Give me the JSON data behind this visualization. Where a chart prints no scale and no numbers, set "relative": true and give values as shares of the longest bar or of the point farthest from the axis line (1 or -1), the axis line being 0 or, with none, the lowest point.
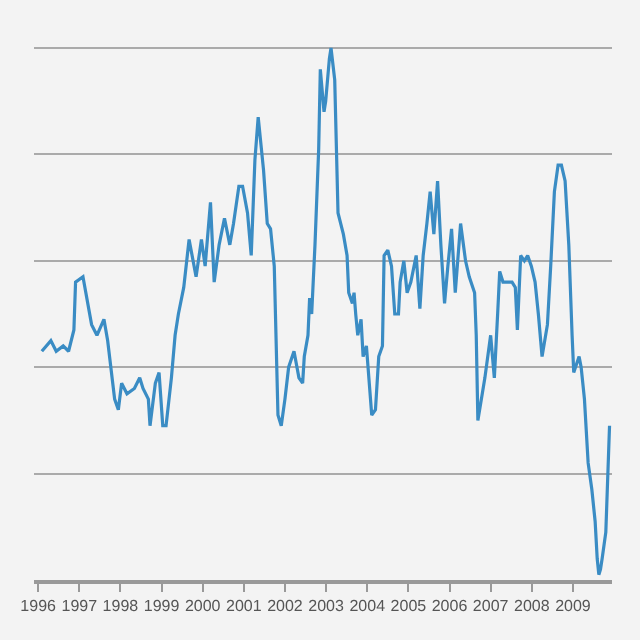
{
  "chart_data": {
    "type": "line",
    "relative": true,
    "grid": "y",
    "marker": "none",
    "line_style": "solid",
    "xlim": [
      1995.9,
      2009.95
    ],
    "xticks": [
      1996,
      1997,
      1998,
      1999,
      2000,
      2001,
      2002,
      2003,
      2004,
      2005,
      2006,
      2007,
      2008,
      2009
    ],
    "series": [
      {
        "color": "#3a8cc4",
        "x": [
          1996.09,
          1996.31,
          1996.44,
          1996.61,
          1996.74,
          1996.87,
          1996.91,
          1997.09,
          1997.3,
          1997.43,
          1997.6,
          1997.69,
          1997.86,
          1997.95,
          1998.03,
          1998.16,
          1998.34,
          1998.47,
          1998.55,
          1998.68,
          1998.72,
          1998.85,
          1998.94,
          1999.03,
          1999.11,
          1999.24,
          1999.33,
          1999.41,
          1999.54,
          1999.67,
          1999.84,
          1999.97,
          2000.06,
          2000.19,
          2000.28,
          2000.4,
          2000.53,
          2000.66,
          2000.75,
          2000.88,
          2000.97,
          2001.09,
          2001.18,
          2001.27,
          2001.35,
          2001.48,
          2001.57,
          2001.65,
          2001.74,
          2001.83,
          2001.91,
          2002.0,
          2002.09,
          2002.22,
          2002.34,
          2002.43,
          2002.47,
          2002.56,
          2002.6,
          2002.65,
          2002.73,
          2002.82,
          2002.86,
          2002.95,
          2002.99,
          2003.08,
          2003.12,
          2003.21,
          2003.29,
          2003.42,
          2003.51,
          2003.55,
          2003.64,
          2003.68,
          2003.72,
          2003.77,
          2003.85,
          2003.9,
          2003.98,
          2004.11,
          2004.2,
          2004.28,
          2004.37,
          2004.41,
          2004.5,
          2004.59,
          2004.67,
          2004.76,
          2004.8,
          2004.89,
          2004.97,
          2005.06,
          2005.19,
          2005.28,
          2005.36,
          2005.45,
          2005.53,
          2005.62,
          2005.71,
          2005.79,
          2005.88,
          2005.96,
          2006.05,
          2006.14,
          2006.27,
          2006.39,
          2006.48,
          2006.61,
          2006.65,
          2006.69,
          2006.86,
          2007.0,
          2007.09,
          2007.17,
          2007.22,
          2007.3,
          2007.39,
          2007.52,
          2007.6,
          2007.65,
          2007.73,
          2007.82,
          2007.9,
          2007.99,
          2008.08,
          2008.16,
          2008.25,
          2008.38,
          2008.46,
          2008.55,
          2008.64,
          2008.72,
          2008.81,
          2008.9,
          2008.98,
          2009.02,
          2009.15,
          2009.2,
          2009.28,
          2009.37,
          2009.46,
          2009.54,
          2009.59,
          2009.63,
          2009.67,
          2009.71,
          2009.8,
          2009.89
        ],
        "values": [
          0.43,
          0.45,
          0.43,
          0.44,
          0.43,
          0.47,
          0.56,
          0.57,
          0.48,
          0.46,
          0.49,
          0.45,
          0.34,
          0.32,
          0.37,
          0.35,
          0.36,
          0.38,
          0.36,
          0.34,
          0.29,
          0.37,
          0.39,
          0.29,
          0.29,
          0.38,
          0.46,
          0.5,
          0.55,
          0.64,
          0.57,
          0.64,
          0.59,
          0.71,
          0.56,
          0.63,
          0.68,
          0.63,
          0.67,
          0.74,
          0.74,
          0.69,
          0.61,
          0.79,
          0.87,
          0.77,
          0.67,
          0.66,
          0.59,
          0.31,
          0.29,
          0.34,
          0.4,
          0.43,
          0.38,
          0.37,
          0.42,
          0.46,
          0.53,
          0.5,
          0.63,
          0.81,
          0.96,
          0.88,
          0.9,
          0.98,
          1,
          0.94,
          0.69,
          0.65,
          0.61,
          0.54,
          0.52,
          0.54,
          0.5,
          0.46,
          0.49,
          0.42,
          0.44,
          0.31,
          0.32,
          0.42,
          0.44,
          0.61,
          0.62,
          0.59,
          0.5,
          0.5,
          0.56,
          0.6,
          0.54,
          0.56,
          0.61,
          0.51,
          0.61,
          0.67,
          0.73,
          0.65,
          0.75,
          0.63,
          0.52,
          0.59,
          0.66,
          0.54,
          0.67,
          0.6,
          0.57,
          0.54,
          0.46,
          0.3,
          0.38,
          0.46,
          0.38,
          0.5,
          0.58,
          0.56,
          0.56,
          0.56,
          0.55,
          0.47,
          0.61,
          0.6,
          0.61,
          0.59,
          0.56,
          0.5,
          0.42,
          0.48,
          0.59,
          0.73,
          0.78,
          0.78,
          0.75,
          0.63,
          0.46,
          0.39,
          0.42,
          0.4,
          0.34,
          0.22,
          0.17,
          0.11,
          0.04,
          0.01,
          0.02,
          0.04,
          0.09,
          0.29
        ]
      }
    ]
  }
}
